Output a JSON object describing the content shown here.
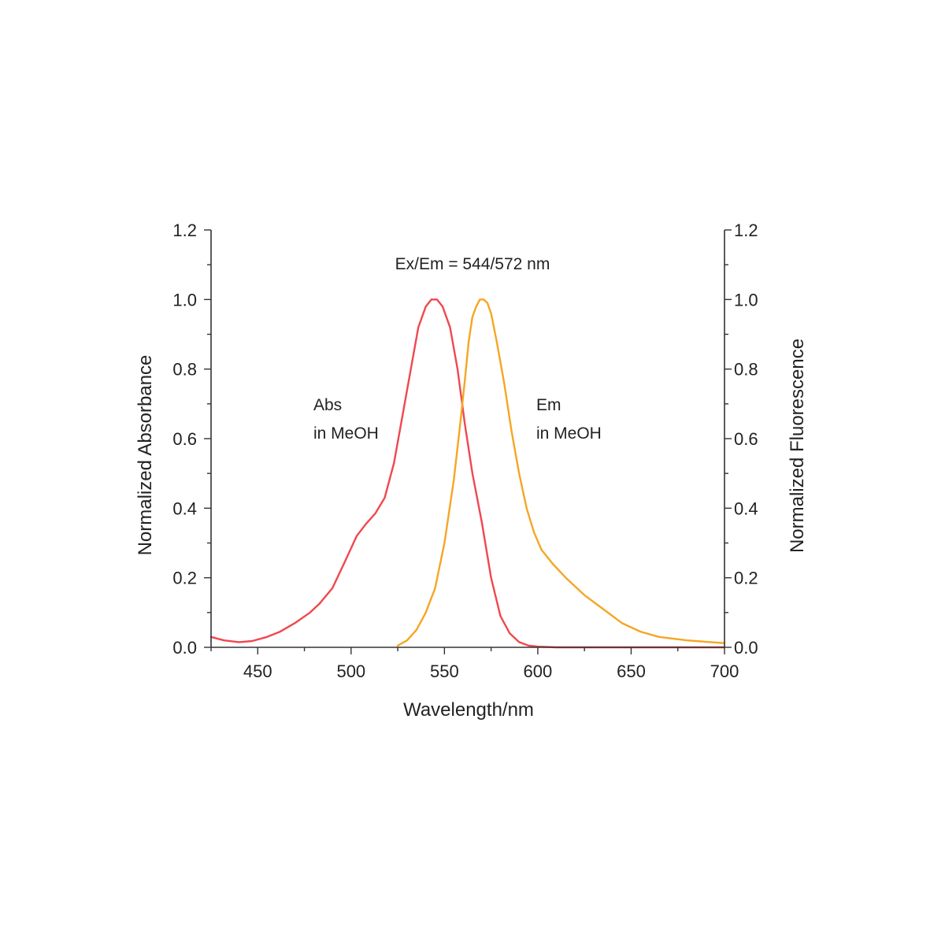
{
  "chart_data": {
    "type": "line",
    "title": "",
    "xlabel": "Wavelength/nm",
    "ylabel_left": "Normalized Absorbance",
    "ylabel_right": "Normalized Fluorescence",
    "xlim": [
      425,
      700
    ],
    "ylim": [
      0,
      1.2
    ],
    "x_ticks": [
      450,
      500,
      550,
      600,
      650,
      700
    ],
    "x_tick_labels": [
      "450",
      "500",
      "550",
      "600",
      "650",
      "700"
    ],
    "y_ticks": [
      0,
      0.2,
      0.4,
      0.6,
      0.8,
      1.0,
      1.2
    ],
    "y_tick_labels": [
      "0.0",
      "0.2",
      "0.4",
      "0.6",
      "0.8",
      "1.0",
      "1.2"
    ],
    "grid": false,
    "annotations": {
      "ex_em": "Ex/Em = 544/572 nm",
      "abs_line1": "Abs",
      "abs_line2": "in MeOH",
      "em_line1": "Em",
      "em_line2": "in MeOH"
    },
    "series": [
      {
        "color": "#f0474f",
        "x": [
          425,
          432,
          440,
          447,
          455,
          462,
          470,
          478,
          483,
          490,
          497,
          503,
          508,
          513,
          518,
          523,
          528,
          532,
          536,
          540,
          543,
          546,
          549,
          553,
          557,
          561,
          565,
          570,
          575,
          580,
          585,
          590,
          595,
          600,
          610,
          630,
          700
        ],
        "y": [
          0.03,
          0.02,
          0.015,
          0.018,
          0.03,
          0.045,
          0.07,
          0.1,
          0.125,
          0.17,
          0.25,
          0.32,
          0.355,
          0.385,
          0.43,
          0.53,
          0.68,
          0.8,
          0.92,
          0.98,
          1.0,
          1.0,
          0.98,
          0.92,
          0.8,
          0.64,
          0.5,
          0.36,
          0.2,
          0.09,
          0.04,
          0.015,
          0.005,
          0.002,
          0.0,
          0.0,
          0.0
        ]
      },
      {
        "color": "#f5a623",
        "x": [
          525,
          530,
          535,
          540,
          545,
          550,
          555,
          558,
          561,
          563,
          565,
          567,
          569,
          571,
          573,
          575,
          578,
          582,
          586,
          590,
          594,
          598,
          602,
          608,
          615,
          625,
          635,
          645,
          655,
          665,
          680,
          700
        ],
        "y": [
          0.005,
          0.02,
          0.05,
          0.1,
          0.17,
          0.3,
          0.48,
          0.62,
          0.77,
          0.88,
          0.95,
          0.98,
          1.0,
          1.0,
          0.99,
          0.96,
          0.88,
          0.76,
          0.62,
          0.5,
          0.4,
          0.33,
          0.28,
          0.24,
          0.2,
          0.15,
          0.11,
          0.07,
          0.045,
          0.03,
          0.02,
          0.012
        ]
      }
    ]
  }
}
